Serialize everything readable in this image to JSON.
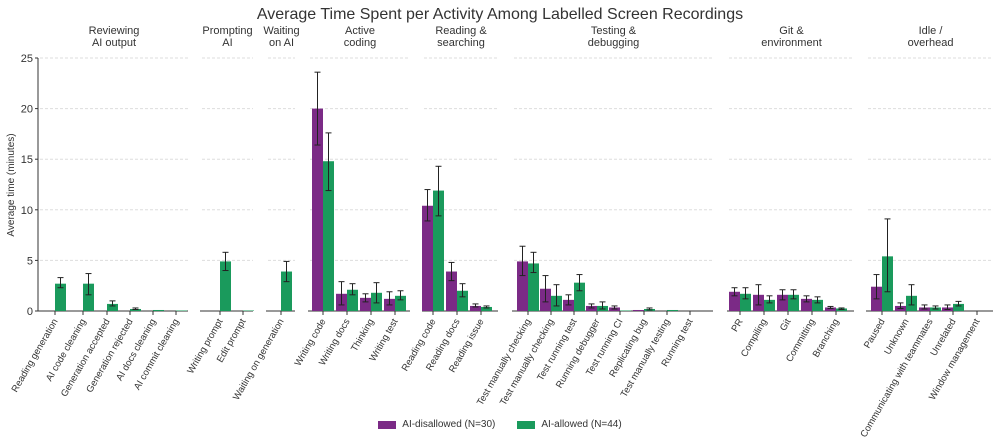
{
  "chart_data": {
    "type": "bar",
    "title": "Average Time Spent per Activity Among Labelled Screen Recordings",
    "ylabel": "Average time (minutes)",
    "xlabel": "",
    "ylim": [
      0,
      25
    ],
    "yticks": [
      0,
      5,
      10,
      15,
      20,
      25
    ],
    "grid": true,
    "legend_position": "bottom",
    "series": [
      {
        "name": "AI-disallowed (N=30)",
        "color": "#7b2a86"
      },
      {
        "name": "AI-allowed (N=44)",
        "color": "#1a9a5c"
      }
    ],
    "groups": [
      {
        "title": [
          "Reviewing",
          "AI output"
        ],
        "categories": [
          "Reading generation",
          "AI code cleaning",
          "Generation accepted",
          "Generation rejected",
          "AI docs cleaning",
          "AI commit cleaning"
        ],
        "values": [
          [
            0,
            0,
            0,
            0,
            0,
            0
          ],
          [
            2.7,
            2.7,
            0.7,
            0.2,
            0.1,
            0.05
          ]
        ],
        "errors": [
          [
            null,
            null,
            null,
            null,
            null,
            null
          ],
          [
            [
              2.3,
              3.3
            ],
            [
              1.6,
              3.7
            ],
            [
              0.5,
              1.0
            ],
            [
              0.15,
              0.3
            ],
            null,
            null
          ]
        ]
      },
      {
        "title": [
          "Prompting",
          "AI"
        ],
        "categories": [
          "Writing prompt",
          "Edit prompt"
        ],
        "values": [
          [
            0,
            0
          ],
          [
            4.9,
            0.05
          ]
        ],
        "errors": [
          [
            null,
            null
          ],
          [
            [
              4.0,
              5.8
            ],
            null
          ]
        ]
      },
      {
        "title": [
          "Waiting",
          "on AI"
        ],
        "categories": [
          "Waiting on generation"
        ],
        "values": [
          [
            0
          ],
          [
            3.9
          ]
        ],
        "errors": [
          [
            null
          ],
          [
            [
              2.9,
              4.9
            ]
          ]
        ]
      },
      {
        "title": [
          "Active",
          "coding"
        ],
        "categories": [
          "Writing code",
          "Writing docs",
          "Thinking",
          "Writing test"
        ],
        "values": [
          [
            20.0,
            1.7,
            1.3,
            1.2
          ],
          [
            14.8,
            2.1,
            1.8,
            1.5
          ]
        ],
        "errors": [
          [
            [
              16.4,
              23.6
            ],
            [
              0.6,
              2.9
            ],
            [
              0.9,
              1.7
            ],
            [
              0.6,
              1.9
            ]
          ],
          [
            [
              11.9,
              17.6
            ],
            [
              1.6,
              2.7
            ],
            [
              0.8,
              2.8
            ],
            [
              1.1,
              2.0
            ]
          ]
        ]
      },
      {
        "title": [
          "Reading &",
          "searching"
        ],
        "categories": [
          "Reading code",
          "Reading docs",
          "Reading issue"
        ],
        "values": [
          [
            10.4,
            3.9,
            0.5
          ],
          [
            11.9,
            2.0,
            0.4
          ]
        ],
        "errors": [
          [
            [
              8.9,
              12.0
            ],
            [
              3.0,
              4.8
            ],
            [
              0.4,
              0.7
            ]
          ],
          [
            [
              9.4,
              14.3
            ],
            [
              1.4,
              2.7
            ],
            [
              0.3,
              0.5
            ]
          ]
        ]
      },
      {
        "title": [
          "Testing &",
          "debugging"
        ],
        "categories": [
          "Test manually checking",
          "Test manually checking",
          "Test running test",
          "Running debugger",
          "Test running CI",
          "Replicating bug",
          "Test manually testing",
          "Running test"
        ],
        "values": [
          [
            4.9,
            2.2,
            1.1,
            0.5,
            0.35,
            0.1,
            0,
            0
          ],
          [
            4.7,
            1.5,
            2.8,
            0.5,
            0.05,
            0.2,
            0.1,
            0
          ]
        ],
        "errors": [
          [
            [
              3.5,
              6.4
            ],
            [
              0.9,
              3.5
            ],
            [
              0.6,
              1.6
            ],
            [
              0.3,
              0.7
            ],
            [
              0.2,
              0.5
            ],
            null,
            null,
            null
          ],
          [
            [
              3.8,
              5.8
            ],
            [
              0.5,
              2.6
            ],
            [
              2.0,
              3.6
            ],
            [
              0.2,
              0.9
            ],
            null,
            [
              0.1,
              0.3
            ],
            null,
            null
          ]
        ]
      },
      {
        "title": [
          "Git &",
          "environment"
        ],
        "categories": [
          "PR",
          "Compiling",
          "Git",
          "Committing",
          "Branching"
        ],
        "values": [
          [
            1.9,
            1.6,
            1.6,
            1.2,
            0.35
          ],
          [
            1.7,
            1.1,
            1.6,
            1.1,
            0.25
          ]
        ],
        "errors": [
          [
            [
              1.5,
              2.3
            ],
            [
              0.6,
              2.6
            ],
            [
              1.1,
              2.1
            ],
            [
              0.9,
              1.5
            ],
            [
              0.25,
              0.45
            ]
          ],
          [
            [
              1.2,
              2.3
            ],
            [
              0.8,
              1.5
            ],
            [
              1.2,
              2.1
            ],
            [
              0.8,
              1.4
            ],
            [
              0.15,
              0.3
            ]
          ]
        ]
      },
      {
        "title": [
          "Idle /",
          "overhead"
        ],
        "categories": [
          "Paused",
          "Unknown",
          "Communicating with teammates",
          "Unrelated",
          "Window management"
        ],
        "values": [
          [
            2.4,
            0.5,
            0.35,
            0.35,
            0
          ],
          [
            5.4,
            1.5,
            0.35,
            0.7,
            0
          ]
        ],
        "errors": [
          [
            [
              1.2,
              3.6
            ],
            [
              0.25,
              0.8
            ],
            [
              0.2,
              0.6
            ],
            [
              0.15,
              0.6
            ],
            null
          ],
          [
            [
              1.9,
              9.1
            ],
            [
              0.6,
              2.6
            ],
            [
              0.2,
              0.5
            ],
            [
              0.5,
              0.95
            ],
            null
          ]
        ]
      }
    ]
  }
}
